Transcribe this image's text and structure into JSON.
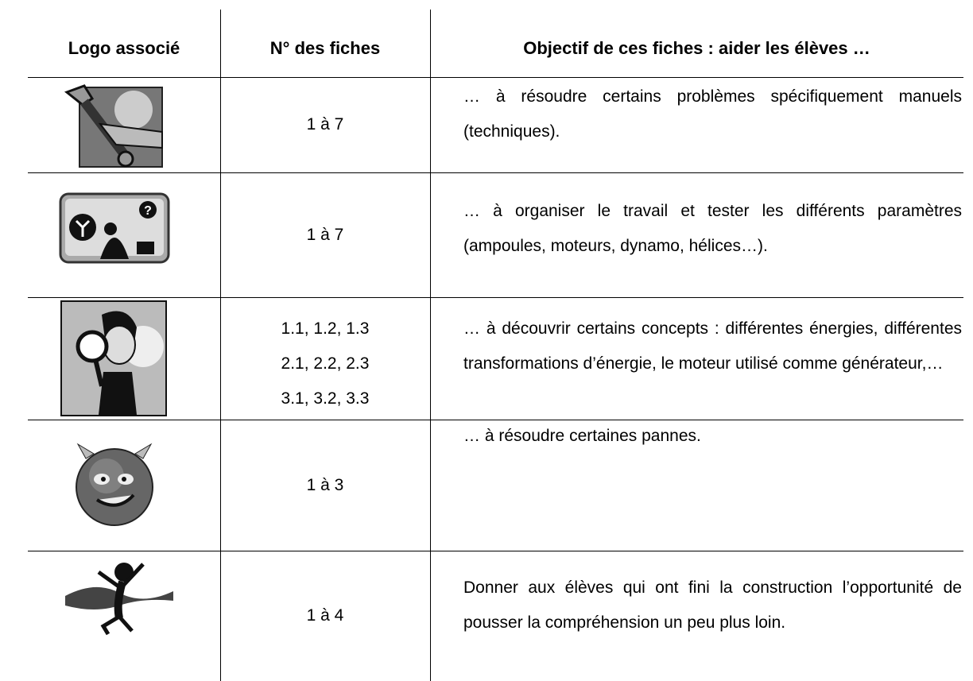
{
  "table": {
    "headers": [
      "Logo associé",
      "N° des fiches",
      "Objectif de ces fiches : aider les élèves …"
    ],
    "rows": [
      {
        "numbers": [
          "1 à 7"
        ],
        "objective": "… à résoudre certains problèmes spécifiquement manuels (techniques)."
      },
      {
        "numbers": [
          "1 à 7"
        ],
        "objective": "… à organiser le travail et tester les différents paramètres (ampoules, moteurs, dynamo, hélices…)."
      },
      {
        "numbers": [
          "1.1, 1.2, 1.3",
          "2.1, 2.2, 2.3",
          "3.1, 3.2, 3.3"
        ],
        "objective": "… à découvrir certains concepts : différentes énergies, différentes transformations d’énergie, le moteur utilisé comme générateur,…"
      },
      {
        "numbers": [
          "1 à 3"
        ],
        "objective": "… à résoudre certaines pannes."
      },
      {
        "numbers": [
          "1 à 4"
        ],
        "objective": "Donner aux élèves qui ont fini la construction l’opportunité de pousser la compréhension un peu plus loin."
      }
    ]
  }
}
